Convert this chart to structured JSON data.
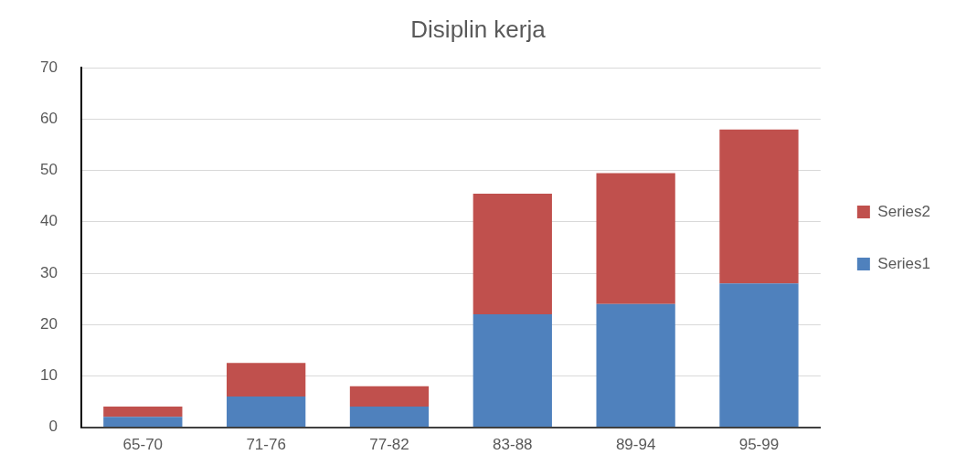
{
  "chart_data": {
    "type": "bar",
    "title": "Disiplin kerja",
    "stacked": true,
    "categories": [
      "65-70",
      "71-76",
      "77-82",
      "83-88",
      "89-94",
      "95-99"
    ],
    "series": [
      {
        "name": "Series1",
        "color": "#4f81bd",
        "values": [
          2,
          6,
          4,
          22,
          24,
          28
        ]
      },
      {
        "name": "Series2",
        "color": "#c0504d",
        "values": [
          2,
          6.5,
          4,
          23.5,
          25.5,
          30
        ]
      }
    ],
    "ylim": [
      0,
      70
    ],
    "yticks": [
      0,
      10,
      20,
      30,
      40,
      50,
      60,
      70
    ],
    "grid": "y",
    "legend": "right"
  }
}
